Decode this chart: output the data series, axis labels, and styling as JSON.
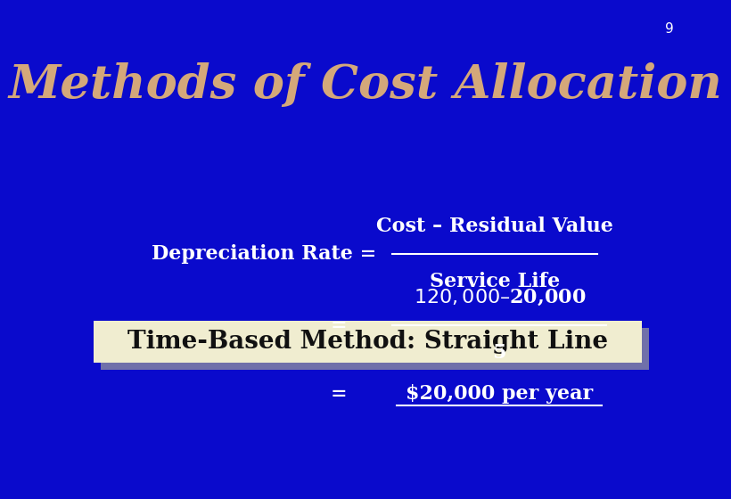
{
  "background_color": "#0A0ACC",
  "slide_number": "9",
  "slide_number_color": "#FFFFFF",
  "title": "Methods of Cost Allocation",
  "title_color": "#D4A87A",
  "title_fontsize": 38,
  "title_style": "italic",
  "title_weight": "bold",
  "subtitle_box_text": "Time-Based Method: Straight Line",
  "subtitle_box_bg": "#F0EDD0",
  "subtitle_box_shadow": "#7070AA",
  "subtitle_text_color": "#111111",
  "subtitle_fontsize": 20,
  "subtitle_weight": "bold",
  "formula_label": "Depreciation Rate =",
  "formula_numerator": "Cost – Residual Value",
  "formula_denominator": "Service Life",
  "formula_color": "#FFFFFF",
  "formula_fontsize": 16,
  "eq2_label": "=",
  "eq2_numerator": "$120,000 – $20,000",
  "eq2_denominator": "5",
  "eq3_label": "=",
  "eq3_result": "$20,000 per year",
  "line_color": "#FFFFFF",
  "slide_num_fontsize": 11
}
